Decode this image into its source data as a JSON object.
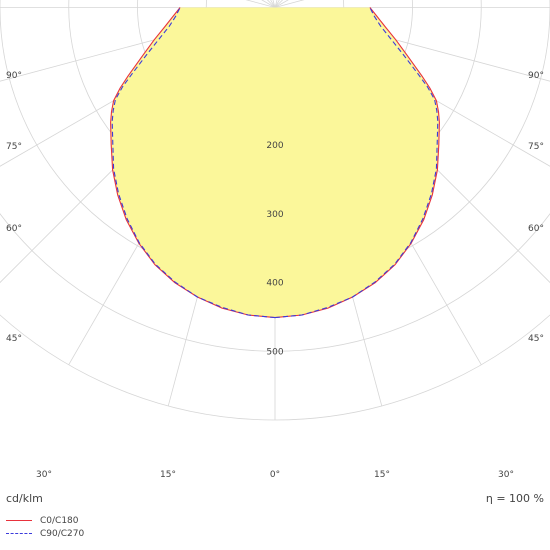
{
  "chart_data": {
    "type": "polar-line",
    "unit_label": "cd/klm",
    "efficiency_label": "η = 100 %",
    "radial_ticks": [
      "200",
      "300",
      "400",
      "500"
    ],
    "angle_labels": {
      "left": [
        "90°",
        "75°",
        "60°",
        "45°"
      ],
      "bottom": [
        "30°",
        "15°",
        "0°",
        "15°",
        "30°"
      ],
      "right": [
        "90°",
        "75°",
        "60°",
        "45°"
      ]
    },
    "rmax": 600,
    "angles_deg": [
      0,
      5,
      10,
      15,
      20,
      25,
      30,
      35,
      40,
      45,
      50,
      55,
      57.5,
      60,
      62.5,
      65,
      70,
      75,
      80,
      85,
      90
    ],
    "series": [
      {
        "name": "C0/C180",
        "color": "#e8323c",
        "dash": "",
        "values": [
          451,
          449,
          444,
          436,
          426,
          413,
          396,
          377,
          356,
          334,
          311,
          292,
          282,
          271,
          254,
          236,
          205,
          182,
          163,
          149,
          138
        ]
      },
      {
        "name": "C90/C270",
        "color": "#3b3bdb",
        "dash": "5,3",
        "values": [
          451,
          449,
          443,
          436,
          425,
          412,
          395,
          375,
          354,
          332,
          308,
          289,
          279,
          268,
          250,
          230,
          198,
          174,
          156,
          145,
          138
        ]
      }
    ],
    "fill_color": "#fbf79a",
    "grid": true
  }
}
